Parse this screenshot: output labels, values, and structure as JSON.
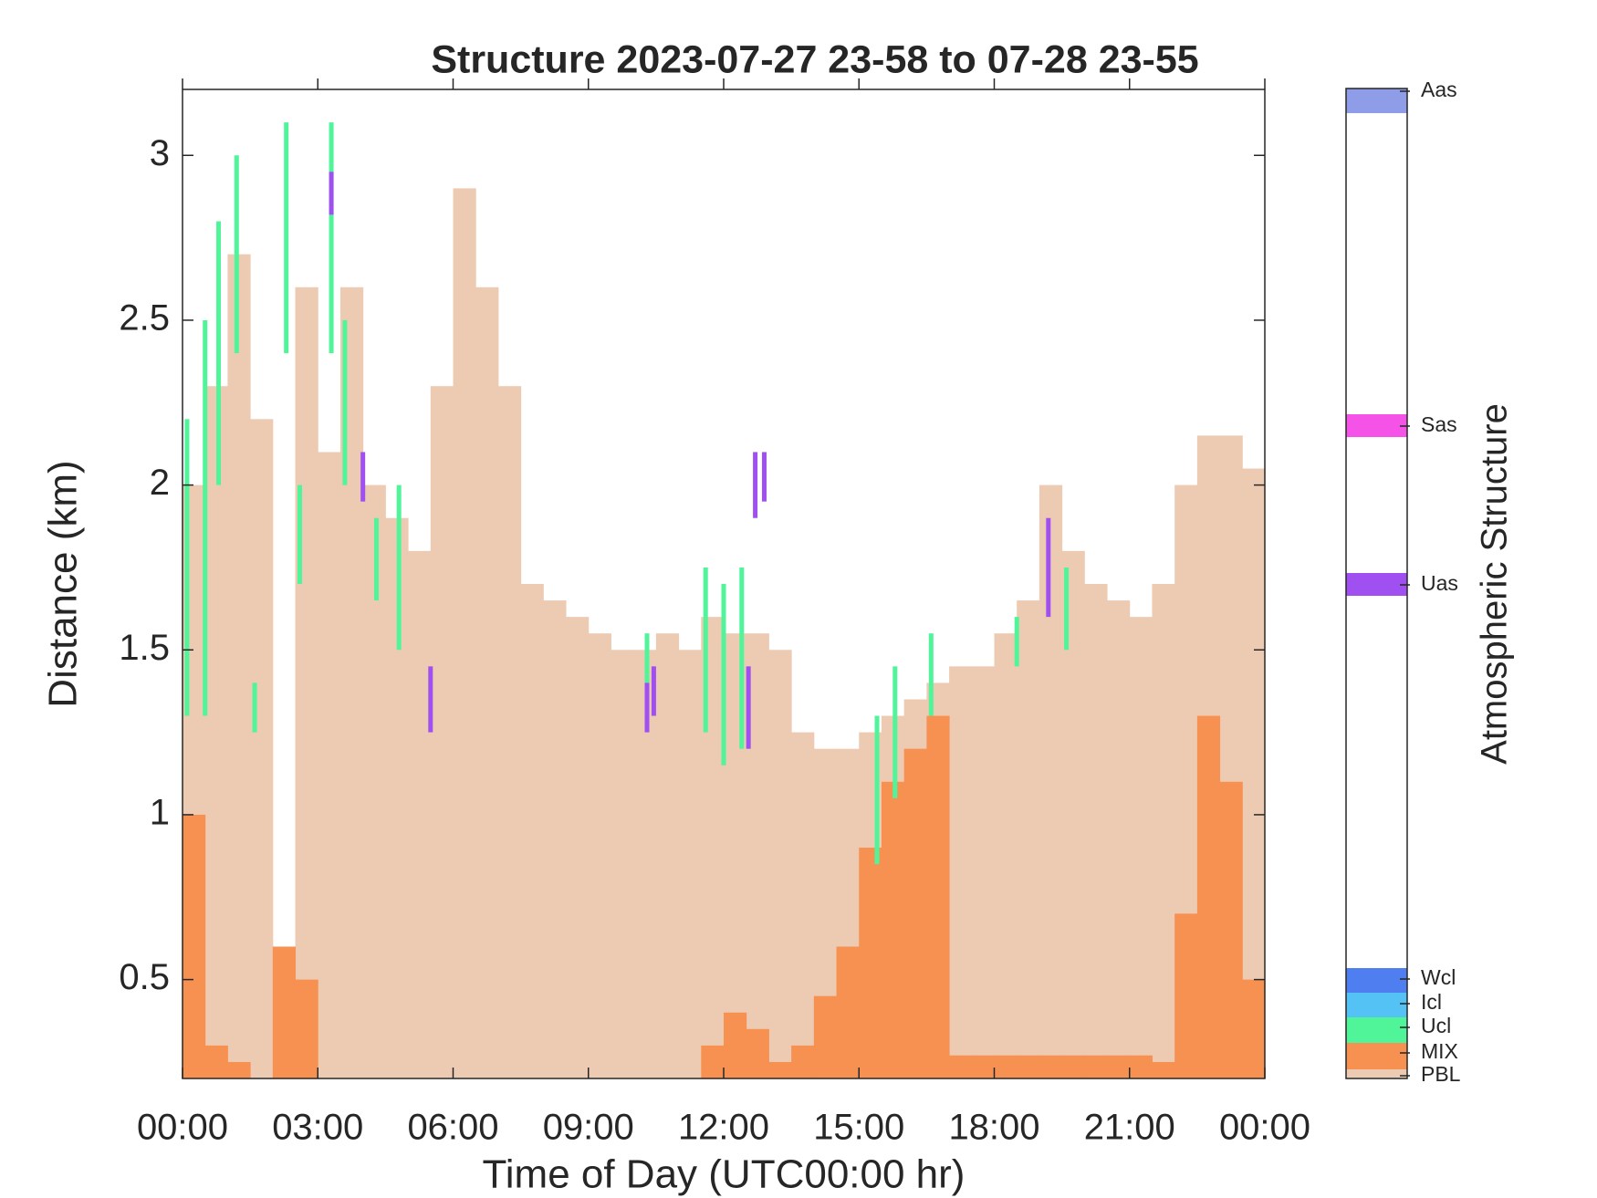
{
  "chart_data": {
    "type": "structure",
    "title": "Structure 2023-07-27 23-58 to 07-28 23-55",
    "xlabel": "Time of Day (UTC00:00 hr)",
    "ylabel": "Distance (km)",
    "colorbar_label": "Atmospheric Structure",
    "xlim": [
      0,
      24
    ],
    "xticks": [
      {
        "value": 0,
        "label": "00:00"
      },
      {
        "value": 3,
        "label": "03:00"
      },
      {
        "value": 6,
        "label": "06:00"
      },
      {
        "value": 9,
        "label": "09:00"
      },
      {
        "value": 12,
        "label": "12:00"
      },
      {
        "value": 15,
        "label": "15:00"
      },
      {
        "value": 18,
        "label": "18:00"
      },
      {
        "value": 21,
        "label": "21:00"
      },
      {
        "value": 24,
        "label": "00:00"
      }
    ],
    "ylim": [
      0.2,
      3.2
    ],
    "yticks": [
      0.5,
      1,
      1.5,
      2,
      2.5,
      3
    ],
    "series": [
      {
        "name": "PBL",
        "color": "#edcbb3",
        "x": [
          0,
          0.5,
          1,
          1.5,
          2,
          2.5,
          3,
          3.5,
          4,
          4.5,
          5,
          5.5,
          6,
          6.5,
          7,
          7.5,
          8,
          8.5,
          9,
          9.5,
          10,
          10.5,
          11,
          11.5,
          12,
          12.5,
          13,
          13.5,
          14,
          14.5,
          15,
          15.5,
          16,
          16.5,
          17,
          17.5,
          18,
          18.5,
          19,
          19.5,
          20,
          20.5,
          21,
          21.5,
          22,
          22.5,
          23,
          23.5
        ],
        "values": [
          2.0,
          2.3,
          2.7,
          2.2,
          0.4,
          2.6,
          2.1,
          2.6,
          2.0,
          1.9,
          1.8,
          2.3,
          2.9,
          2.6,
          2.3,
          1.7,
          1.65,
          1.6,
          1.55,
          1.5,
          1.5,
          1.55,
          1.5,
          1.6,
          1.55,
          1.55,
          1.5,
          1.25,
          1.2,
          1.2,
          1.25,
          1.3,
          1.35,
          1.4,
          1.45,
          1.45,
          1.55,
          1.65,
          2.0,
          1.8,
          1.7,
          1.65,
          1.6,
          1.7,
          2.0,
          2.15,
          2.15,
          2.05
        ]
      },
      {
        "name": "MIX",
        "color": "#f79152",
        "x": [
          0,
          0.5,
          1,
          1.5,
          2,
          2.5,
          3,
          3.5,
          4,
          4.5,
          5,
          5.5,
          6,
          6.5,
          7,
          7.5,
          8,
          8.5,
          9,
          9.5,
          10,
          10.5,
          11,
          11.5,
          12,
          12.5,
          13,
          13.5,
          14,
          14.5,
          15,
          15.5,
          16,
          16.5,
          17,
          17.5,
          18,
          18.5,
          19,
          19.5,
          20,
          20.5,
          21,
          21.5,
          22,
          22.5,
          23,
          23.5
        ],
        "values": [
          1.0,
          0.3,
          0.25,
          0.2,
          0.6,
          0.5,
          0.2,
          0.2,
          0.2,
          0.2,
          0.2,
          0.2,
          0.2,
          0.2,
          0.2,
          0.2,
          0.2,
          0.2,
          0.2,
          0.2,
          0.2,
          0.2,
          0.2,
          0.3,
          0.4,
          0.35,
          0.25,
          0.3,
          0.45,
          0.6,
          0.9,
          1.1,
          1.2,
          1.3,
          0.27,
          0.27,
          0.27,
          0.27,
          0.27,
          0.27,
          0.27,
          0.27,
          0.27,
          0.25,
          0.7,
          1.3,
          1.1,
          0.5
        ]
      },
      {
        "name": "Ucl",
        "color": "#50f59a",
        "x": [
          0.1,
          0.5,
          0.8,
          1.2,
          1.6,
          2.3,
          2.6,
          3.3,
          3.6,
          4.3,
          4.8,
          10.3,
          11.6,
          12.0,
          12.4,
          15.4,
          15.8,
          16.6,
          18.5,
          19.6
        ],
        "values": [
          2.2,
          2.5,
          2.8,
          3.0,
          1.4,
          3.1,
          2.0,
          3.1,
          2.5,
          1.9,
          2.0,
          1.55,
          1.75,
          1.7,
          1.75,
          1.3,
          1.45,
          1.55,
          1.6,
          1.75
        ],
        "base": [
          1.3,
          1.3,
          2.0,
          2.4,
          1.25,
          2.4,
          1.7,
          2.4,
          2.0,
          1.65,
          1.5,
          1.3,
          1.25,
          1.15,
          1.2,
          0.85,
          1.05,
          1.3,
          1.45,
          1.5
        ]
      },
      {
        "name": "Icl",
        "color": "#55c2f5",
        "x": [],
        "values": [],
        "base": []
      },
      {
        "name": "Wcl",
        "color": "#4f7ef0",
        "x": [],
        "values": [],
        "base": []
      },
      {
        "name": "Uas",
        "color": "#a050f0",
        "x": [
          3.3,
          4.0,
          5.5,
          10.3,
          10.45,
          12.55,
          12.7,
          12.9,
          19.2
        ],
        "values": [
          2.95,
          2.1,
          1.45,
          1.4,
          1.45,
          1.45,
          2.1,
          2.1,
          1.9
        ],
        "base": [
          2.82,
          1.95,
          1.25,
          1.25,
          1.3,
          1.2,
          1.9,
          1.95,
          1.6
        ]
      },
      {
        "name": "Sas",
        "color": "#f553e8",
        "x": [],
        "values": [],
        "base": []
      },
      {
        "name": "Aas",
        "color": "#8f9ce8",
        "x": [],
        "values": [],
        "base": []
      }
    ]
  }
}
